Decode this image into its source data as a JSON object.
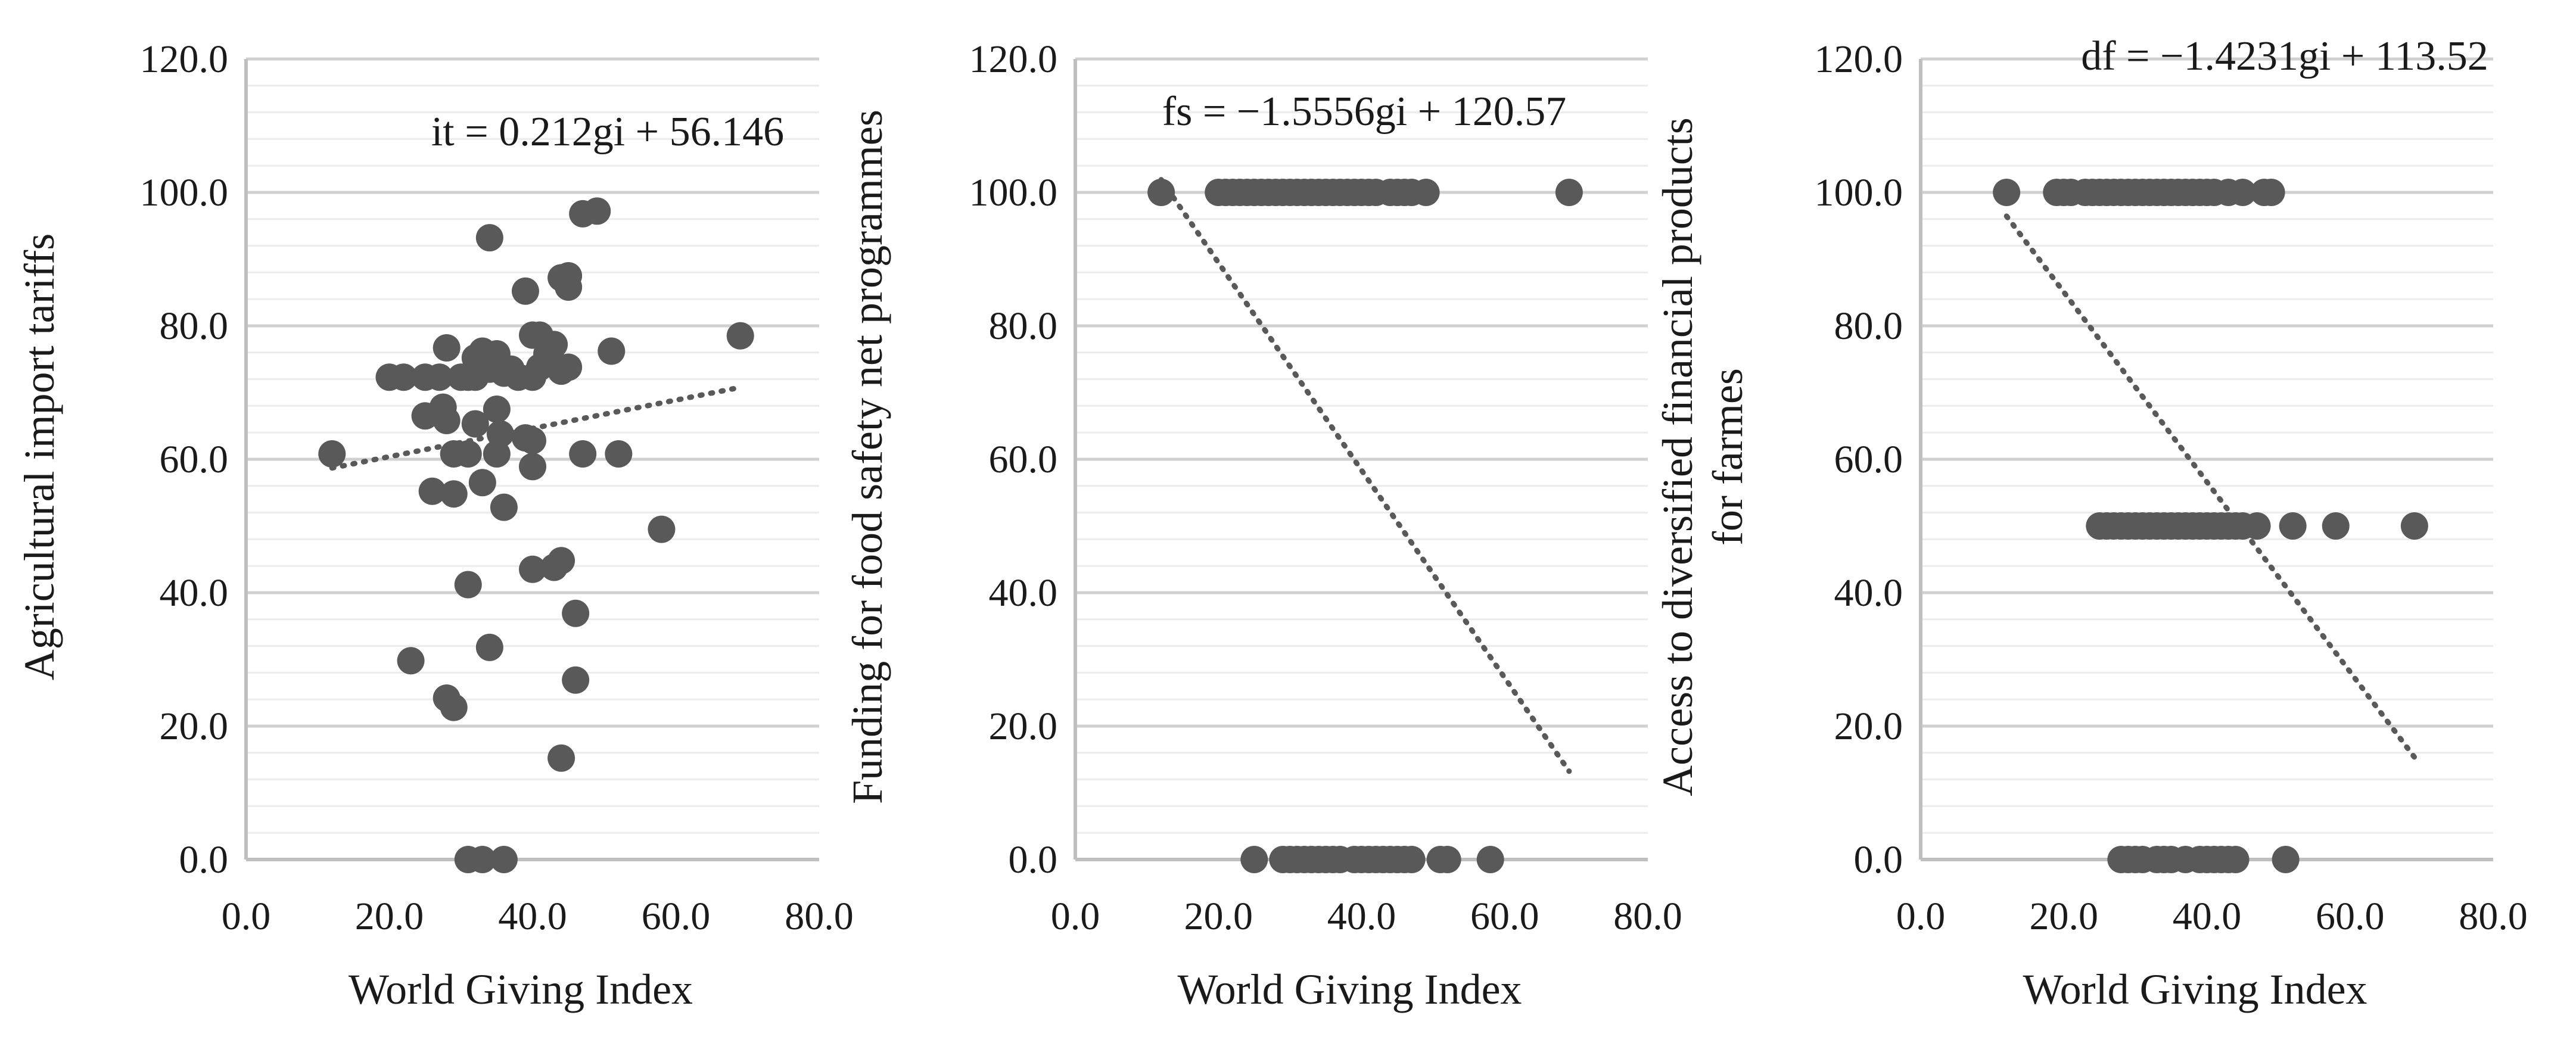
{
  "chart_data": [
    {
      "type": "scatter",
      "xlabel": "World Giving Index",
      "ylabel": [
        "Agricultural import tariffs"
      ],
      "xlim": [
        0,
        80
      ],
      "ylim": [
        0,
        120
      ],
      "xticks": [
        "0.0",
        "20.0",
        "40.0",
        "60.0",
        "80.0"
      ],
      "yticks": [
        "0.0",
        "20.0",
        "40.0",
        "60.0",
        "80.0",
        "100.0",
        "120.0"
      ],
      "equation": "it = 0.212gi + 56.146",
      "trendline": {
        "slope": 0.212,
        "intercept": 56.146,
        "x_range": [
          12,
          69
        ]
      },
      "grid": "horizontal",
      "marker_color": "#595959",
      "points": [
        [
          12,
          60.8
        ],
        [
          20,
          72.3
        ],
        [
          22,
          72.3
        ],
        [
          23,
          29.8
        ],
        [
          25,
          72.3
        ],
        [
          25,
          66.5
        ],
        [
          26,
          55.2
        ],
        [
          27,
          72.3
        ],
        [
          27.5,
          67.8
        ],
        [
          28,
          76.7
        ],
        [
          28,
          65.8
        ],
        [
          28,
          24.2
        ],
        [
          29,
          60.8
        ],
        [
          29,
          54.8
        ],
        [
          29,
          22.8
        ],
        [
          30,
          72.3
        ],
        [
          31,
          72.3
        ],
        [
          31,
          60.8
        ],
        [
          31,
          41.2
        ],
        [
          31,
          0
        ],
        [
          32,
          75.2
        ],
        [
          32,
          72.3
        ],
        [
          32,
          65.3
        ],
        [
          33,
          76.2
        ],
        [
          33,
          56.5
        ],
        [
          33,
          0
        ],
        [
          34,
          93.2
        ],
        [
          34,
          73.5
        ],
        [
          34,
          31.8
        ],
        [
          35,
          75.8
        ],
        [
          35,
          67.5
        ],
        [
          35,
          60.8
        ],
        [
          35.5,
          63.8
        ],
        [
          36,
          72.9
        ],
        [
          36,
          52.8
        ],
        [
          36,
          0
        ],
        [
          37,
          73.5
        ],
        [
          38,
          72.3
        ],
        [
          39,
          85.2
        ],
        [
          39,
          63.2
        ],
        [
          40,
          78.6
        ],
        [
          40,
          72.3
        ],
        [
          40,
          62.8
        ],
        [
          40,
          58.9
        ],
        [
          40,
          43.5
        ],
        [
          41,
          78.6
        ],
        [
          41,
          73.8
        ],
        [
          42,
          75.8
        ],
        [
          43,
          77.2
        ],
        [
          43,
          43.8
        ],
        [
          44,
          87.2
        ],
        [
          44,
          73.2
        ],
        [
          44,
          44.8
        ],
        [
          44,
          15.2
        ],
        [
          45,
          87.5
        ],
        [
          45,
          85.8
        ],
        [
          45,
          73.8
        ],
        [
          46,
          36.9
        ],
        [
          46,
          26.9
        ],
        [
          47,
          96.8
        ],
        [
          47,
          60.8
        ],
        [
          49,
          97.2
        ],
        [
          51,
          76.2
        ],
        [
          52,
          60.8
        ],
        [
          58,
          49.5
        ],
        [
          69,
          78.5
        ]
      ]
    },
    {
      "type": "scatter",
      "xlabel": "World Giving Index",
      "ylabel": [
        "Funding for food safety net programmes"
      ],
      "xlim": [
        0,
        80
      ],
      "ylim": [
        0,
        120
      ],
      "xticks": [
        "0.0",
        "20.0",
        "40.0",
        "60.0",
        "80.0"
      ],
      "yticks": [
        "0.0",
        "20.0",
        "40.0",
        "60.0",
        "80.0",
        "100.0",
        "120.0"
      ],
      "equation": "fs = −1.5556gi + 120.57",
      "trendline": {
        "slope": -1.5556,
        "intercept": 120.57,
        "x_range": [
          12,
          69
        ]
      },
      "grid": "horizontal",
      "marker_color": "#595959",
      "points": [
        [
          12,
          100
        ],
        [
          20,
          100
        ],
        [
          21,
          100
        ],
        [
          22,
          100
        ],
        [
          23,
          100
        ],
        [
          24,
          100
        ],
        [
          25,
          100
        ],
        [
          26,
          100
        ],
        [
          27,
          100
        ],
        [
          28,
          100
        ],
        [
          29,
          100
        ],
        [
          30,
          100
        ],
        [
          31,
          100
        ],
        [
          32,
          100
        ],
        [
          33,
          100
        ],
        [
          34,
          100
        ],
        [
          35,
          100
        ],
        [
          36,
          100
        ],
        [
          37,
          100
        ],
        [
          38,
          100
        ],
        [
          39,
          100
        ],
        [
          40,
          100
        ],
        [
          41,
          100
        ],
        [
          42,
          100
        ],
        [
          44,
          100
        ],
        [
          45,
          100
        ],
        [
          46,
          100
        ],
        [
          47,
          100
        ],
        [
          49,
          100
        ],
        [
          69,
          100
        ],
        [
          25,
          0
        ],
        [
          29,
          0
        ],
        [
          30,
          0
        ],
        [
          31,
          0
        ],
        [
          32,
          0
        ],
        [
          33,
          0
        ],
        [
          34,
          0
        ],
        [
          35,
          0
        ],
        [
          36,
          0
        ],
        [
          37,
          0
        ],
        [
          39,
          0
        ],
        [
          40,
          0
        ],
        [
          41,
          0
        ],
        [
          42,
          0
        ],
        [
          43,
          0
        ],
        [
          44,
          0
        ],
        [
          45,
          0
        ],
        [
          46,
          0
        ],
        [
          47,
          0
        ],
        [
          51,
          0
        ],
        [
          52,
          0
        ],
        [
          58,
          0
        ]
      ]
    },
    {
      "type": "scatter",
      "xlabel": "World Giving Index",
      "ylabel": [
        "Access to diversified financial products",
        "for farmes"
      ],
      "xlim": [
        0,
        80
      ],
      "ylim": [
        0,
        120
      ],
      "xticks": [
        "0.0",
        "20.0",
        "40.0",
        "60.0",
        "80.0"
      ],
      "yticks": [
        "0.0",
        "20.0",
        "40.0",
        "60.0",
        "80.0",
        "100.0",
        "120.0"
      ],
      "equation": "df = −1.4231gi + 113.52",
      "trendline": {
        "slope": -1.4231,
        "intercept": 113.52,
        "x_range": [
          12,
          69
        ]
      },
      "grid": "horizontal",
      "marker_color": "#595959",
      "points": [
        [
          12,
          100
        ],
        [
          19,
          100
        ],
        [
          20,
          100
        ],
        [
          21,
          100
        ],
        [
          23,
          100
        ],
        [
          24,
          100
        ],
        [
          25,
          100
        ],
        [
          26,
          100
        ],
        [
          27,
          100
        ],
        [
          28,
          100
        ],
        [
          29,
          100
        ],
        [
          30,
          100
        ],
        [
          31,
          100
        ],
        [
          32,
          100
        ],
        [
          33,
          100
        ],
        [
          34,
          100
        ],
        [
          35,
          100
        ],
        [
          36,
          100
        ],
        [
          37,
          100
        ],
        [
          38,
          100
        ],
        [
          39,
          100
        ],
        [
          40,
          100
        ],
        [
          41,
          100
        ],
        [
          43,
          100
        ],
        [
          45,
          100
        ],
        [
          48,
          100
        ],
        [
          49,
          100
        ],
        [
          25,
          50
        ],
        [
          26,
          50
        ],
        [
          27,
          50
        ],
        [
          28,
          50
        ],
        [
          29,
          50
        ],
        [
          30,
          50
        ],
        [
          31,
          50
        ],
        [
          32,
          50
        ],
        [
          33,
          50
        ],
        [
          34,
          50
        ],
        [
          35,
          50
        ],
        [
          36,
          50
        ],
        [
          37,
          50
        ],
        [
          38,
          50
        ],
        [
          39,
          50
        ],
        [
          40,
          50
        ],
        [
          41,
          50
        ],
        [
          42,
          50
        ],
        [
          43,
          50
        ],
        [
          44,
          50
        ],
        [
          45,
          50
        ],
        [
          47,
          50
        ],
        [
          52,
          50
        ],
        [
          58,
          50
        ],
        [
          69,
          50
        ],
        [
          28,
          0
        ],
        [
          29,
          0
        ],
        [
          30,
          0
        ],
        [
          31,
          0
        ],
        [
          33,
          0
        ],
        [
          34,
          0
        ],
        [
          35,
          0
        ],
        [
          37,
          0
        ],
        [
          39,
          0
        ],
        [
          40,
          0
        ],
        [
          41,
          0
        ],
        [
          42,
          0
        ],
        [
          43,
          0
        ],
        [
          44,
          0
        ],
        [
          51,
          0
        ]
      ]
    }
  ]
}
